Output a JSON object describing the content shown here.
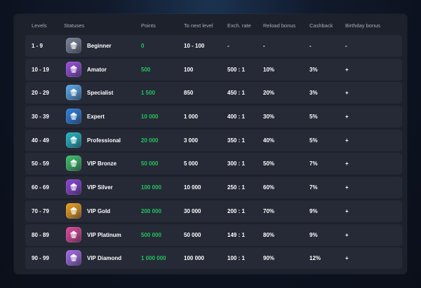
{
  "headers": {
    "levels": "Levels",
    "statuses": "Statuses",
    "points": "Points",
    "next": "To next level",
    "exch": "Exch. rate",
    "reload": "Reload bonus",
    "cashback": "Cashback",
    "birthday": "Birthday bonus"
  },
  "rows": [
    {
      "levels": "1 - 9",
      "status": "Beginner",
      "points": "0",
      "next": "10 - 100",
      "exch": "-",
      "reload": "-",
      "cashback": "-",
      "birthday": "-",
      "icon": "grey-gem-icon",
      "color": "#7a8296"
    },
    {
      "levels": "10 - 19",
      "status": "Amator",
      "points": "500",
      "next": "100",
      "exch": "500 : 1",
      "reload": "10%",
      "cashback": "3%",
      "birthday": "+",
      "icon": "purple-gem-icon",
      "color": "#9b4fe0"
    },
    {
      "levels": "20 - 29",
      "status": "Specialist",
      "points": "1 500",
      "next": "850",
      "exch": "450 : 1",
      "reload": "20%",
      "cashback": "3%",
      "birthday": "+",
      "icon": "blue-crystal-icon",
      "color": "#5aa8ea"
    },
    {
      "levels": "30 - 39",
      "status": "Expert",
      "points": "10 000",
      "next": "1 000",
      "exch": "400 : 1",
      "reload": "30%",
      "cashback": "5%",
      "birthday": "+",
      "icon": "blue-gem-icon",
      "color": "#2f7fe0"
    },
    {
      "levels": "40 - 49",
      "status": "Professional",
      "points": "20 000",
      "next": "3 000",
      "exch": "350 : 1",
      "reload": "40%",
      "cashback": "5%",
      "birthday": "+",
      "icon": "teal-diamond-icon",
      "color": "#24b6c6"
    },
    {
      "levels": "50 - 59",
      "status": "VIP Bronze",
      "points": "50 000",
      "next": "5 000",
      "exch": "300 : 1",
      "reload": "50%",
      "cashback": "7%",
      "birthday": "+",
      "icon": "green-crystal-icon",
      "color": "#3ec06a"
    },
    {
      "levels": "60 - 69",
      "status": "VIP Silver",
      "points": "100 000",
      "next": "10 000",
      "exch": "250 : 1",
      "reload": "60%",
      "cashback": "7%",
      "birthday": "+",
      "icon": "violet-gems-icon",
      "color": "#8b44d8"
    },
    {
      "levels": "70 - 79",
      "status": "VIP Gold",
      "points": "200 000",
      "next": "30 000",
      "exch": "200 : 1",
      "reload": "70%",
      "cashback": "9%",
      "birthday": "+",
      "icon": "gold-crystal-icon",
      "color": "#f0a11c"
    },
    {
      "levels": "80 - 89",
      "status": "VIP Platinum",
      "points": "500 000",
      "next": "50 000",
      "exch": "149 : 1",
      "reload": "80%",
      "cashback": "9%",
      "birthday": "+",
      "icon": "pink-gems-icon",
      "color": "#e0479b"
    },
    {
      "levels": "90 - 99",
      "status": "VIP Diamond",
      "points": "1 000 000",
      "next": "100 000",
      "exch": "100 : 1",
      "reload": "90%",
      "cashback": "12%",
      "birthday": "+",
      "icon": "rainbow-gems-icon",
      "color": "#a46be6"
    }
  ]
}
